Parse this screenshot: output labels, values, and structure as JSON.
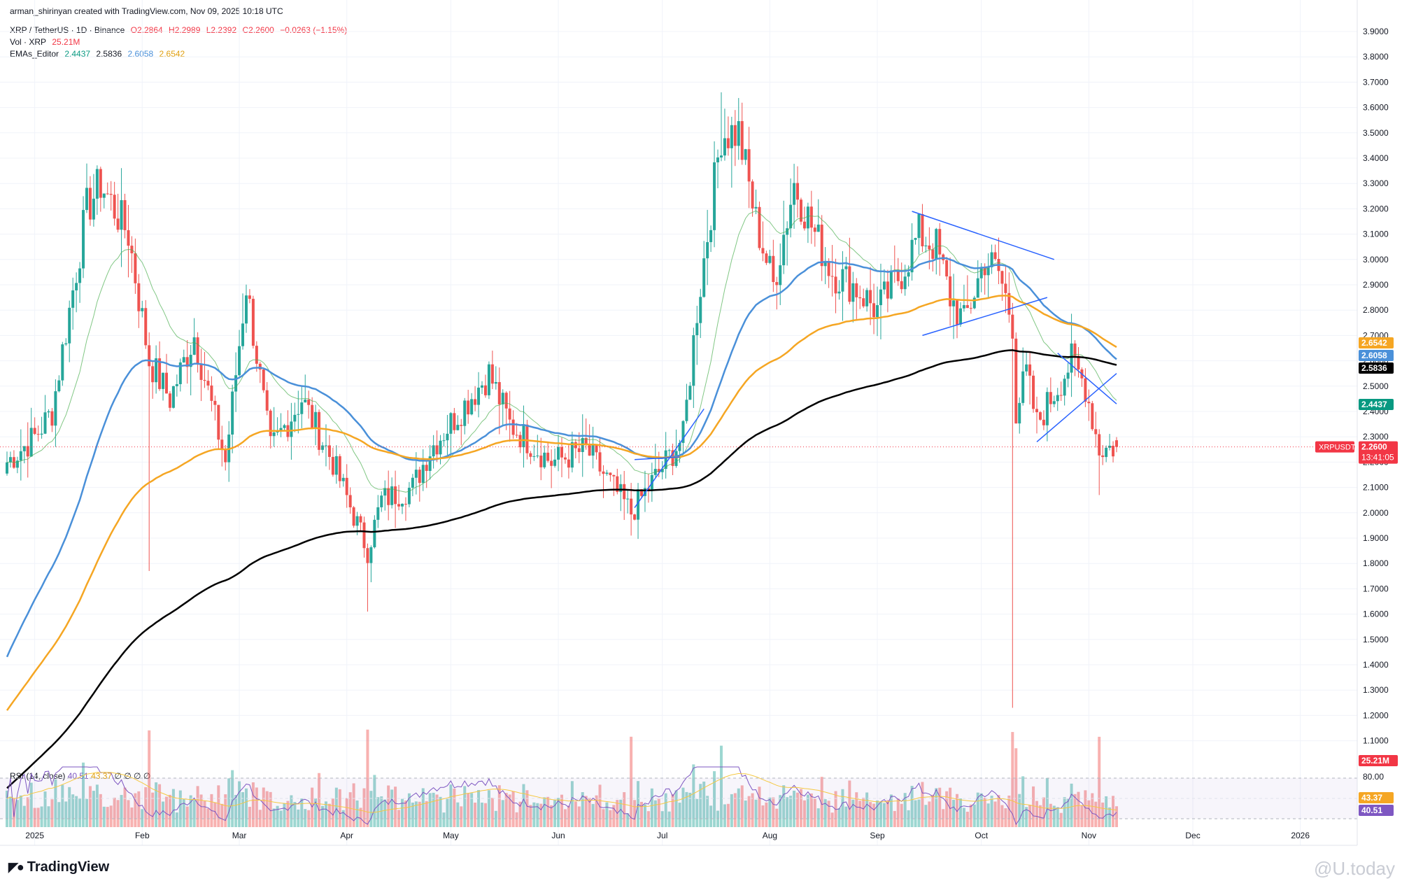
{
  "header": {
    "credit": "arman_shirinyan created with TradingView.com, Nov 09, 2025 10:18 UTC",
    "symbol": "XRP / TetherUS · 1D · Binance",
    "open": "O2.2864",
    "high": "H2.2989",
    "low": "L2.2392",
    "close": "C2.2600",
    "change": "−0.0263 (−1.15%)",
    "vol_label": "Vol · XRP",
    "vol_value": "25.21M",
    "ema_label": "EMAs_Editor",
    "ema_values": [
      "2.4437",
      "2.5836",
      "2.6058",
      "2.6542"
    ]
  },
  "rsi_legend": {
    "label": "RSI (14, close)",
    "value1": "40.51",
    "value2": "43.37",
    "extras": "∅ ∅ ∅ ∅"
  },
  "footer": {
    "brand": "TradingView",
    "watermark": "@U.today"
  },
  "colors": {
    "up": "#26a69a",
    "down": "#ef5350",
    "ema20": "#4caf50",
    "ema50": "#4a90d9",
    "ema100": "#f5a623",
    "ema200": "#000000",
    "trendline": "#2962ff",
    "rsi": "#7e57c2"
  },
  "chart_data": {
    "type": "candlestick",
    "symbol": "XRPUSDT",
    "timeframe": "1D",
    "price_axis": {
      "ticks": [
        "3.9000",
        "3.8000",
        "3.7000",
        "3.6000",
        "3.5000",
        "3.4000",
        "3.3000",
        "3.2000",
        "3.1000",
        "3.0000",
        "2.9000",
        "2.8000",
        "2.7000",
        "2.6000",
        "2.5000",
        "2.4000",
        "2.3000",
        "2.2000",
        "2.1000",
        "2.0000",
        "1.9000",
        "1.8000",
        "1.7000",
        "1.6000",
        "1.5000",
        "1.4000",
        "1.3000",
        "1.2000",
        "1.1000"
      ],
      "range": [
        1.02,
        3.96
      ]
    },
    "time_axis": {
      "labels": [
        "2025",
        "Feb",
        "Mar",
        "Apr",
        "May",
        "Jun",
        "Jul",
        "Aug",
        "Sep",
        "Oct",
        "Nov",
        "Dec",
        "2026"
      ]
    },
    "price_badges": [
      {
        "label": "2.6542",
        "value": 2.6542,
        "color": "#f5a623"
      },
      {
        "label": "2.6058",
        "value": 2.6058,
        "color": "#4a90d9"
      },
      {
        "label": "2.5836",
        "value": 2.5836,
        "color": "#000000"
      },
      {
        "label": "2.4437",
        "value": 2.4437,
        "color": "#089981"
      },
      {
        "label": "2.2600",
        "value": 2.26,
        "color": "#f23645"
      }
    ],
    "last_price": {
      "symbol": "XRPUSDT",
      "price": "2.2600",
      "countdown": "13:41:05"
    },
    "volume_badge": "25.21M",
    "rsi_axis": {
      "top_tick": "80.00",
      "badges": [
        "43.37",
        "40.51"
      ]
    },
    "anchors": [
      {
        "date": "2024-12-24",
        "price": 2.2
      },
      {
        "date": "2025-01-01",
        "price": 2.3
      },
      {
        "date": "2025-01-06",
        "price": 2.4
      },
      {
        "date": "2025-01-16",
        "price": 3.2
      },
      {
        "date": "2025-01-20",
        "price": 3.3
      },
      {
        "date": "2025-01-28",
        "price": 3.1
      },
      {
        "date": "2025-02-03",
        "price": 2.6
      },
      {
        "date": "2025-02-09",
        "price": 2.45
      },
      {
        "date": "2025-02-16",
        "price": 2.7
      },
      {
        "date": "2025-02-25",
        "price": 2.2
      },
      {
        "date": "2025-03-03",
        "price": 2.9
      },
      {
        "date": "2025-03-10",
        "price": 2.25
      },
      {
        "date": "2025-03-19",
        "price": 2.45
      },
      {
        "date": "2025-03-28",
        "price": 2.2
      },
      {
        "date": "2025-04-07",
        "price": 1.85
      },
      {
        "date": "2025-04-11",
        "price": 2.05
      },
      {
        "date": "2025-04-20",
        "price": 2.1
      },
      {
        "date": "2025-04-25",
        "price": 2.25
      },
      {
        "date": "2025-05-12",
        "price": 2.55
      },
      {
        "date": "2025-05-18",
        "price": 2.35
      },
      {
        "date": "2025-05-30",
        "price": 2.2
      },
      {
        "date": "2025-06-09",
        "price": 2.25
      },
      {
        "date": "2025-06-22",
        "price": 2.0
      },
      {
        "date": "2025-07-02",
        "price": 2.2
      },
      {
        "date": "2025-07-07",
        "price": 2.3
      },
      {
        "date": "2025-07-11",
        "price": 2.8
      },
      {
        "date": "2025-07-18",
        "price": 3.5
      },
      {
        "date": "2025-07-23",
        "price": 3.5
      },
      {
        "date": "2025-07-28",
        "price": 3.15
      },
      {
        "date": "2025-08-02",
        "price": 2.9
      },
      {
        "date": "2025-08-08",
        "price": 3.3
      },
      {
        "date": "2025-08-14",
        "price": 3.1
      },
      {
        "date": "2025-08-19",
        "price": 2.95
      },
      {
        "date": "2025-08-25",
        "price": 2.9
      },
      {
        "date": "2025-09-01",
        "price": 2.8
      },
      {
        "date": "2025-09-08",
        "price": 2.95
      },
      {
        "date": "2025-09-13",
        "price": 3.1
      },
      {
        "date": "2025-09-18",
        "price": 3.05
      },
      {
        "date": "2025-09-22",
        "price": 2.85
      },
      {
        "date": "2025-09-26",
        "price": 2.75
      },
      {
        "date": "2025-10-02",
        "price": 3.0
      },
      {
        "date": "2025-10-06",
        "price": 2.95
      },
      {
        "date": "2025-10-10",
        "price": 2.75
      },
      {
        "date": "2025-10-11",
        "price": 2.4
      },
      {
        "date": "2025-10-14",
        "price": 2.55
      },
      {
        "date": "2025-10-17",
        "price": 2.35
      },
      {
        "date": "2025-10-21",
        "price": 2.45
      },
      {
        "date": "2025-10-27",
        "price": 2.6
      },
      {
        "date": "2025-10-31",
        "price": 2.5
      },
      {
        "date": "2025-11-04",
        "price": 2.25
      },
      {
        "date": "2025-11-09",
        "price": 2.26
      }
    ],
    "spikes": [
      {
        "date": "2025-02-03",
        "low": 1.77
      },
      {
        "date": "2025-04-07",
        "low": 1.61
      },
      {
        "date": "2025-06-22",
        "low": 1.91
      },
      {
        "date": "2025-07-18",
        "high": 3.66
      },
      {
        "date": "2025-10-10",
        "low": 1.23
      },
      {
        "date": "2025-11-04",
        "low": 2.07
      }
    ],
    "ema_series": [
      {
        "name": "EMA 20",
        "period": 20,
        "color": "#4caf50",
        "last": 2.4437
      },
      {
        "name": "EMA 50",
        "period": 50,
        "color": "#4a90d9",
        "last": 2.6058
      },
      {
        "name": "EMA 100",
        "period": 100,
        "color": "#f5a623",
        "last": 2.6542
      },
      {
        "name": "EMA 200",
        "period": 200,
        "color": "#000000",
        "last": 2.5836
      }
    ],
    "trendlines": [
      {
        "from": {
          "date": "2025-06-23",
          "price": 2.02
        },
        "to": {
          "date": "2025-07-13",
          "price": 2.41
        }
      },
      {
        "from": {
          "date": "2025-06-23",
          "price": 2.21
        },
        "to": {
          "date": "2025-07-06",
          "price": 2.22
        }
      },
      {
        "from": {
          "date": "2025-09-11",
          "price": 3.19
        },
        "to": {
          "date": "2025-10-22",
          "price": 3.0
        }
      },
      {
        "from": {
          "date": "2025-09-14",
          "price": 2.7
        },
        "to": {
          "date": "2025-10-20",
          "price": 2.85
        }
      },
      {
        "from": {
          "date": "2025-10-17",
          "price": 2.28
        },
        "to": {
          "date": "2025-11-09",
          "price": 2.55
        }
      },
      {
        "from": {
          "date": "2025-10-23",
          "price": 2.63
        },
        "to": {
          "date": "2025-11-09",
          "price": 2.43
        }
      }
    ],
    "volume": {
      "last": "25.21M"
    },
    "rsi": {
      "period": 14,
      "value": 40.51,
      "signal": 43.37,
      "levels": [
        70,
        30
      ]
    }
  }
}
